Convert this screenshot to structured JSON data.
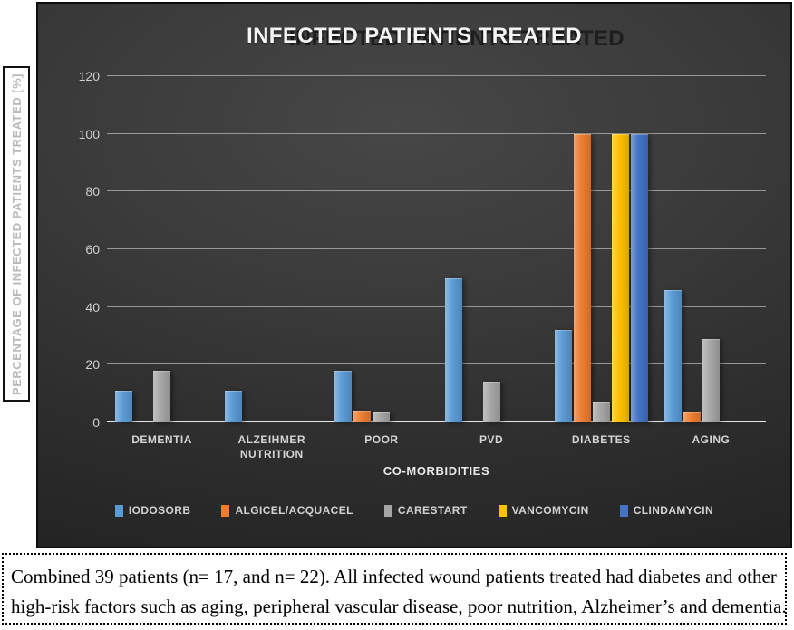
{
  "y_axis_box_label": "PERCENTAGE OF INFECTED PATIENTS TREATED [%]",
  "chart_data": {
    "type": "bar",
    "title": "INFECTED PATIENTS TREATED",
    "xlabel": "CO-MORBIDITIES",
    "ylabel": "PERCENTAGE OF INFECTED PATIENTS TREATED [%]",
    "ylim": [
      0,
      120
    ],
    "yticks": [
      0,
      20,
      40,
      60,
      80,
      100,
      120
    ],
    "grid": true,
    "legend_position": "bottom",
    "categories": [
      "DEMENTIA",
      "ALZEIHMER NUTRITION",
      "POOR",
      "PVD",
      "DIABETES",
      "AGING"
    ],
    "series": [
      {
        "name": "IODOSORB",
        "color": "#5B9BD5",
        "values": [
          11,
          11,
          18,
          50,
          32,
          46
        ]
      },
      {
        "name": "ALGICEL/ACQUACEL",
        "color": "#ED7D31",
        "values": [
          0,
          0,
          4,
          0,
          100,
          3.5
        ]
      },
      {
        "name": "CARESTART",
        "color": "#A6A6A6",
        "values": [
          18,
          0,
          3.5,
          14,
          7,
          29
        ]
      },
      {
        "name": "VANCOMYCIN",
        "color": "#FFC000",
        "values": [
          0,
          0,
          0,
          0,
          100,
          0
        ]
      },
      {
        "name": "CLINDAMYCIN",
        "color": "#4472C4",
        "values": [
          0,
          0,
          0,
          0,
          100,
          0
        ]
      }
    ],
    "background": "#333333",
    "gridline_color": "#a8a8a8"
  },
  "caption": {
    "lines": [
      "Combined 39 patients (n= 17, and n= 22). All infected wound patients treated had diabetes and other",
      "high-risk factors such as aging, peripheral vascular disease, poor nutrition, Alzheimer’s and dementia."
    ]
  }
}
